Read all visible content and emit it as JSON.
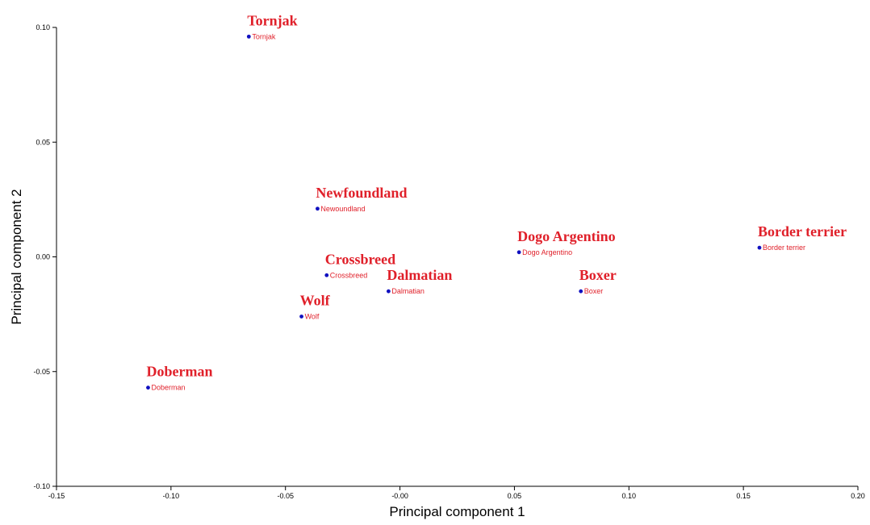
{
  "chart_data": {
    "type": "scatter",
    "xlabel": "Principal component 1",
    "ylabel": "Principal component 2",
    "xlim": [
      -0.15,
      0.2
    ],
    "ylim": [
      -0.1,
      0.1
    ],
    "x_ticks": [
      "-0.15",
      "-0.10",
      "-0.05",
      "-0.00",
      "0.05",
      "0.10",
      "0.15",
      "0.20"
    ],
    "x_tick_values": [
      -0.15,
      -0.1,
      -0.05,
      0.0,
      0.05,
      0.1,
      0.15,
      0.2
    ],
    "y_ticks": [
      "0.10",
      "0.05",
      "0.00",
      "-0.05",
      "-0.10"
    ],
    "y_tick_values": [
      0.1,
      0.05,
      0.0,
      -0.05,
      -0.1
    ],
    "grid": false,
    "point_color": "#1010c0",
    "label_color": "#e0202a",
    "points": [
      {
        "label": "Tornjak",
        "x": -0.066,
        "y": 0.096
      },
      {
        "label": "Newoundland",
        "big_label": "Newfoundland",
        "x": -0.036,
        "y": 0.021
      },
      {
        "label": "Crossbreed",
        "x": -0.032,
        "y": -0.008
      },
      {
        "label": "Dalmatian",
        "x": -0.005,
        "y": -0.015
      },
      {
        "label": "Wolf",
        "x": -0.043,
        "y": -0.026
      },
      {
        "label": "Doberman",
        "x": -0.11,
        "y": -0.057
      },
      {
        "label": "Dogo Argentino",
        "x": 0.052,
        "y": 0.002
      },
      {
        "label": "Boxer",
        "x": 0.079,
        "y": -0.015
      },
      {
        "label": "Border terrier",
        "x": 0.157,
        "y": 0.004
      }
    ]
  }
}
